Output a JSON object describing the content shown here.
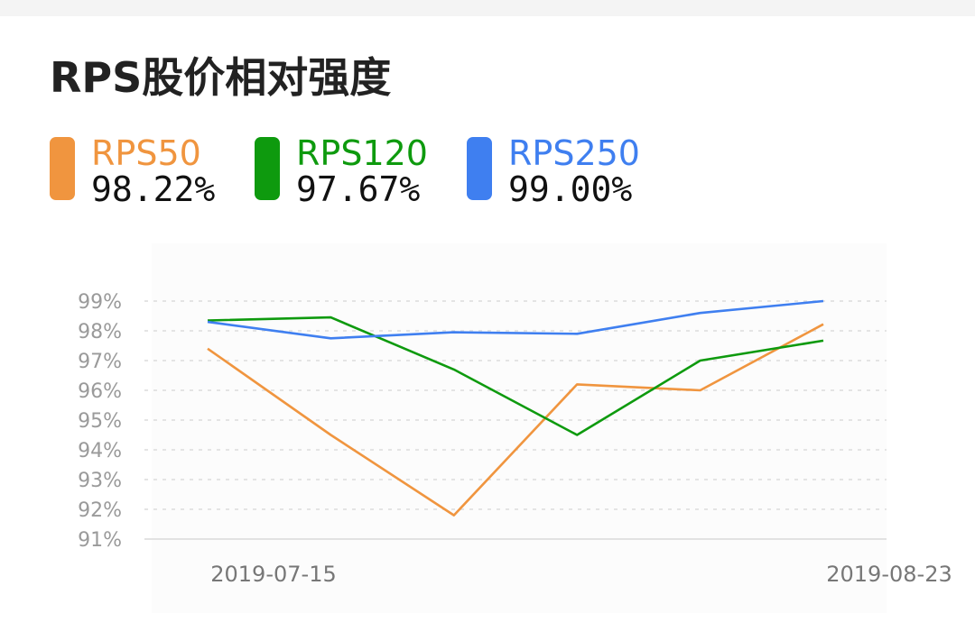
{
  "header": {
    "title": "RPS股价相对强度"
  },
  "legend": [
    {
      "name": "RPS50",
      "value": "98.22%",
      "color": "#F0953F"
    },
    {
      "name": "RPS120",
      "value": "97.67%",
      "color": "#0E9A0E"
    },
    {
      "name": "RPS250",
      "value": "99.00%",
      "color": "#3F7FF0"
    }
  ],
  "chart_data": {
    "type": "line",
    "x_labels": [
      "2019-07-15",
      "2019-08-23"
    ],
    "x_labeled_indices": [
      0,
      5
    ],
    "y_ticks": [
      "91%",
      "92%",
      "93%",
      "94%",
      "95%",
      "96%",
      "97%",
      "98%",
      "99%"
    ],
    "ylim": [
      91,
      99
    ],
    "grid": true,
    "series": [
      {
        "name": "RPS50",
        "color": "#F0953F",
        "values": [
          97.4,
          94.5,
          91.8,
          96.2,
          96.0,
          98.22
        ]
      },
      {
        "name": "RPS120",
        "color": "#0E9A0E",
        "values": [
          98.35,
          98.45,
          96.7,
          94.5,
          97.0,
          97.67
        ]
      },
      {
        "name": "RPS250",
        "color": "#3F7FF0",
        "values": [
          98.3,
          97.75,
          97.95,
          97.9,
          98.6,
          99.0
        ]
      }
    ]
  }
}
